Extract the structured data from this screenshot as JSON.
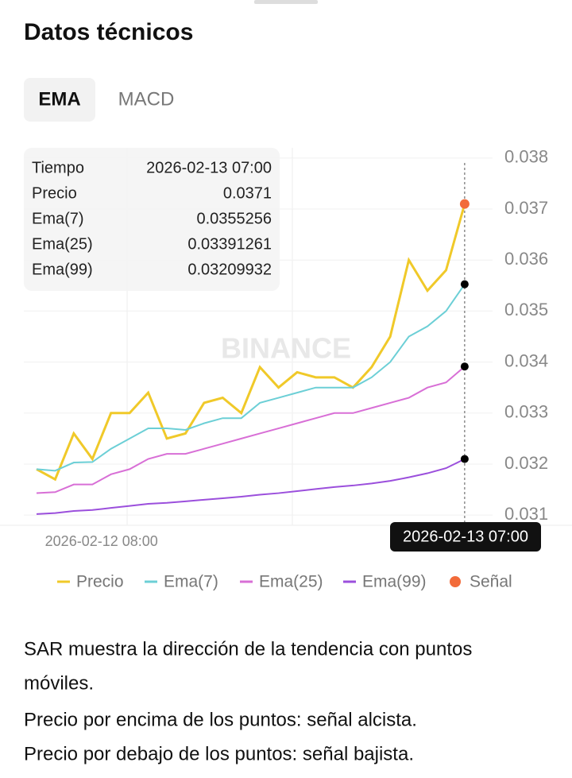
{
  "header": {
    "title": "Datos técnicos"
  },
  "tabs": [
    "EMA",
    "MACD"
  ],
  "tooltip": {
    "rows": [
      [
        "Tiempo",
        "2026-02-13 07:00"
      ],
      [
        "Precio",
        "0.0371"
      ],
      [
        "Ema(7)",
        "0.0355256"
      ],
      [
        "Ema(25)",
        "0.03391261"
      ],
      [
        "Ema(99)",
        "0.03209932"
      ]
    ]
  },
  "chart_data": {
    "type": "line",
    "watermark": "BINANCE",
    "categories": [
      null,
      null,
      null,
      null,
      "2026-02-12 08:00",
      null,
      null,
      null,
      null,
      null,
      null,
      null,
      null,
      null,
      null,
      null,
      null,
      null,
      null,
      null,
      null,
      null,
      null,
      null
    ],
    "crosshair_label": "2026-02-13 07:00",
    "series": [
      {
        "name": "Precio",
        "color": "#f0c929",
        "values": [
          0.0319,
          0.0317,
          0.0326,
          0.0321,
          0.033,
          0.033,
          0.0334,
          0.0325,
          0.0326,
          0.0332,
          0.0333,
          0.033,
          0.0339,
          0.0335,
          0.0338,
          0.0337,
          0.0337,
          0.0335,
          0.0339,
          0.0345,
          0.036,
          0.0354,
          0.0358,
          0.0371
        ]
      },
      {
        "name": "Ema(7)",
        "color": "#6ccfd6",
        "values": [
          0.0319,
          0.03187,
          0.03203,
          0.03204,
          0.0323,
          0.0325,
          0.0327,
          0.0327,
          0.03267,
          0.0328,
          0.0329,
          0.0329,
          0.0332,
          0.0333,
          0.0334,
          0.0335,
          0.0335,
          0.0335,
          0.0337,
          0.034,
          0.0345,
          0.0347,
          0.035,
          0.0355256
        ]
      },
      {
        "name": "Ema(25)",
        "color": "#d86fd6",
        "values": [
          0.03143,
          0.03145,
          0.0316,
          0.0316,
          0.0318,
          0.0319,
          0.0321,
          0.0322,
          0.0322,
          0.0323,
          0.0324,
          0.0325,
          0.0326,
          0.0327,
          0.0328,
          0.0329,
          0.033,
          0.033,
          0.0331,
          0.0332,
          0.0333,
          0.0335,
          0.0336,
          0.03391261
        ]
      },
      {
        "name": "Ema(99)",
        "color": "#9b4fdc",
        "values": [
          0.03102,
          0.03104,
          0.03108,
          0.0311,
          0.03114,
          0.03118,
          0.03122,
          0.03124,
          0.03127,
          0.0313,
          0.03133,
          0.03136,
          0.0314,
          0.03143,
          0.03147,
          0.03151,
          0.03155,
          0.03158,
          0.03162,
          0.03167,
          0.03174,
          0.03182,
          0.03192,
          0.03209932
        ]
      },
      {
        "name": "Señal",
        "color": "#f26b3a",
        "type": "scatter",
        "values": [
          null,
          null,
          null,
          null,
          null,
          null,
          null,
          null,
          null,
          null,
          null,
          null,
          null,
          null,
          null,
          null,
          null,
          null,
          null,
          null,
          null,
          null,
          null,
          0.0371
        ]
      }
    ],
    "ylim": [
      0.0308,
      0.0382
    ],
    "yticks": [
      0.031,
      0.032,
      0.033,
      0.034,
      0.035,
      0.036,
      0.037,
      0.038
    ],
    "grid": true
  },
  "description": [
    "SAR muestra la dirección de la tendencia con puntos",
    "móviles.",
    "Precio por encima de los puntos: señal alcista.",
    "Precio por debajo de los puntos: señal bajista."
  ]
}
